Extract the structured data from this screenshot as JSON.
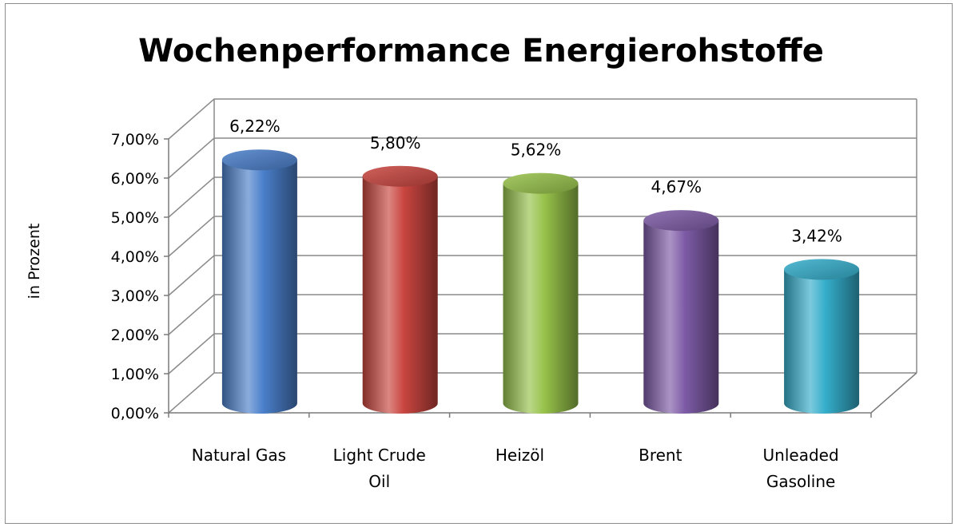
{
  "chart_data": {
    "type": "bar",
    "style": "3d-cylinder",
    "title": "Wochenperformance Energierohstoffe",
    "ylabel": "in Prozent",
    "xlabel": "",
    "ylim": [
      0,
      7
    ],
    "y_ticks": [
      "0,00%",
      "1,00%",
      "2,00%",
      "3,00%",
      "4,00%",
      "5,00%",
      "6,00%",
      "7,00%"
    ],
    "grid": true,
    "legend": "none",
    "categories": [
      [
        "Natural Gas"
      ],
      [
        "Light Crude",
        "Oil"
      ],
      [
        "Heizöl"
      ],
      [
        "Brent"
      ],
      [
        "Unleaded",
        "Gasoline"
      ]
    ],
    "values": [
      6.22,
      5.8,
      5.62,
      4.67,
      3.42
    ],
    "data_labels": [
      "6,22%",
      "5,80%",
      "5,62%",
      "4,67%",
      "3,42%"
    ],
    "colors": [
      "#4a7fca",
      "#c9453f",
      "#97c24a",
      "#7d5ba6",
      "#35aecb"
    ]
  }
}
